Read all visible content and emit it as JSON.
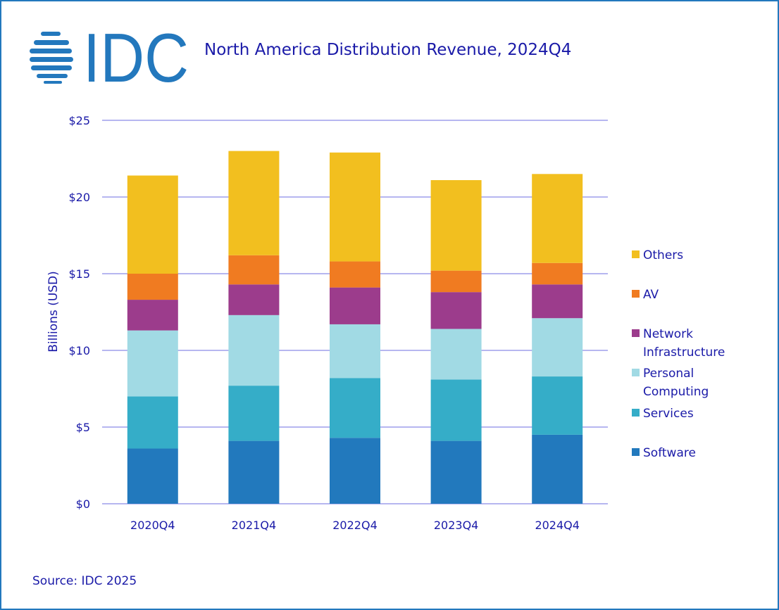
{
  "header": {
    "logo_text": "IDC",
    "title": "North America Distribution Revenue, 2024Q4"
  },
  "footer": {
    "source": "Source: IDC 2025"
  },
  "chart_data": {
    "type": "bar",
    "stacked": true,
    "title": "North America Distribution Revenue, 2024Q4",
    "xlabel": "",
    "ylabel": "Billions (USD)",
    "ylim": [
      0,
      25
    ],
    "yticks": [
      0,
      5,
      10,
      15,
      20,
      25
    ],
    "ytick_labels": [
      "$0",
      "$5",
      "$10",
      "$15",
      "$20",
      "$25"
    ],
    "grid": true,
    "legend_position": "right",
    "categories": [
      "2020Q4",
      "2021Q4",
      "2022Q4",
      "2023Q4",
      "2024Q4"
    ],
    "series": [
      {
        "name": "Software",
        "color": "#2279bd",
        "values": [
          3.6,
          4.1,
          4.3,
          4.1,
          4.5
        ]
      },
      {
        "name": "Services",
        "color": "#35adc8",
        "values": [
          3.4,
          3.6,
          3.9,
          4.0,
          3.8
        ]
      },
      {
        "name": "Personal Computing",
        "color": "#a1dae4",
        "values": [
          4.3,
          4.6,
          3.5,
          3.3,
          3.8
        ]
      },
      {
        "name": "Network Infrastructure",
        "color": "#9c3c8c",
        "values": [
          2.0,
          2.0,
          2.4,
          2.4,
          2.2
        ]
      },
      {
        "name": "AV",
        "color": "#f07b21",
        "values": [
          1.7,
          1.9,
          1.7,
          1.4,
          1.4
        ]
      },
      {
        "name": "Others",
        "color": "#f2bf1f",
        "values": [
          6.4,
          6.8,
          7.1,
          5.9,
          5.8
        ]
      }
    ],
    "legend_order": [
      "Others",
      "AV",
      "Network Infrastructure",
      "Personal Computing",
      "Services",
      "Software"
    ],
    "legend_labels": {
      "Others": [
        "Others"
      ],
      "AV": [
        "AV"
      ],
      "Network Infrastructure": [
        "Network",
        "Infrastructure"
      ],
      "Personal Computing": [
        "Personal",
        "Computing"
      ],
      "Services": [
        "Services"
      ],
      "Software": [
        "Software"
      ]
    }
  },
  "colors": {
    "text": "#1a1aa8",
    "grid": "#b6b6f0",
    "brand": "#2378bd"
  }
}
